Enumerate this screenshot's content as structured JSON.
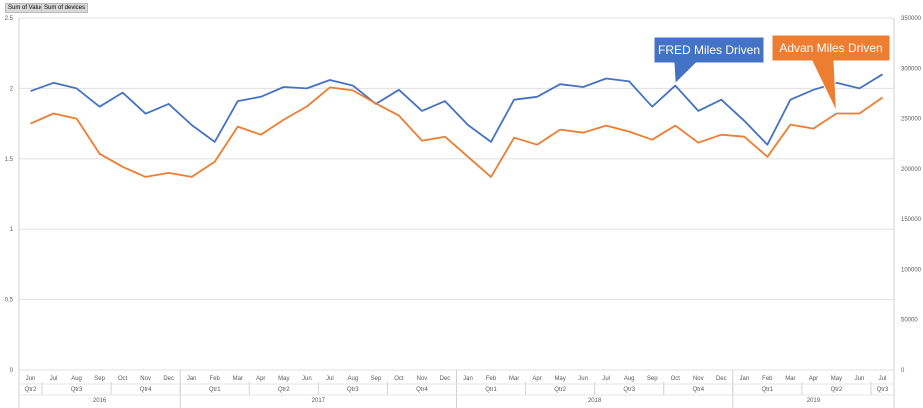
{
  "field_buttons": [
    "Sum of Value",
    "Sum of devices"
  ],
  "colors": {
    "fred": "#4472c4",
    "advan": "#ed7d31",
    "grid": "#e0e0e0",
    "axis_text": "#595959"
  },
  "chart_data": {
    "type": "line",
    "title": "",
    "y_left": {
      "min": 0,
      "max": 2.5,
      "ticks": [
        "0",
        "0.5",
        "1",
        "1.5",
        "2",
        "2.5"
      ]
    },
    "y_right": {
      "min": 0,
      "max": 350000,
      "ticks": [
        "0",
        "50000",
        "100000",
        "150000",
        "200000",
        "250000",
        "300000",
        "350000"
      ]
    },
    "x": [
      "Jun",
      "Jul",
      "Aug",
      "Sep",
      "Oct",
      "Nov",
      "Dec",
      "Jan",
      "Feb",
      "Mar",
      "Apr",
      "May",
      "Jun",
      "Jul",
      "Aug",
      "Sep",
      "Oct",
      "Nov",
      "Dec",
      "Jan",
      "Feb",
      "Mar",
      "Apr",
      "May",
      "Jun",
      "Jul",
      "Aug",
      "Sep",
      "Oct",
      "Nov",
      "Dec",
      "Jan",
      "Feb",
      "Mar",
      "Apr",
      "May",
      "Jun",
      "Jul"
    ],
    "quarters": [
      {
        "label": "Qtr2",
        "start": 0,
        "end": 0
      },
      {
        "label": "Qtr3",
        "start": 1,
        "end": 3
      },
      {
        "label": "Qtr4",
        "start": 4,
        "end": 6
      },
      {
        "label": "Qtr1",
        "start": 7,
        "end": 9
      },
      {
        "label": "Qtr2",
        "start": 10,
        "end": 12
      },
      {
        "label": "Qtr3",
        "start": 13,
        "end": 15
      },
      {
        "label": "Qtr4",
        "start": 16,
        "end": 18
      },
      {
        "label": "Qtr1",
        "start": 19,
        "end": 21
      },
      {
        "label": "Qtr2",
        "start": 22,
        "end": 24
      },
      {
        "label": "Qtr3",
        "start": 25,
        "end": 27
      },
      {
        "label": "Qtr4",
        "start": 28,
        "end": 30
      },
      {
        "label": "Qtr1",
        "start": 31,
        "end": 33
      },
      {
        "label": "Qtr2",
        "start": 34,
        "end": 36
      },
      {
        "label": "Qtr3",
        "start": 37,
        "end": 37
      }
    ],
    "years": [
      {
        "label": "2016",
        "start": 0,
        "end": 6
      },
      {
        "label": "2017",
        "start": 7,
        "end": 18
      },
      {
        "label": "2018",
        "start": 19,
        "end": 30
      },
      {
        "label": "2019",
        "start": 31,
        "end": 37
      }
    ],
    "series": [
      {
        "name": "FRED Miles Driven",
        "axis": "left",
        "color": "#4472c4",
        "values": [
          1.98,
          2.04,
          2.0,
          1.87,
          1.97,
          1.82,
          1.89,
          1.74,
          1.62,
          1.91,
          1.94,
          2.01,
          2.0,
          2.06,
          2.02,
          1.89,
          1.99,
          1.84,
          1.91,
          1.74,
          1.62,
          1.92,
          1.94,
          2.03,
          2.01,
          2.07,
          2.05,
          1.87,
          2.02,
          1.84,
          1.92,
          1.77,
          1.6,
          1.92,
          1.99,
          2.04,
          2.0,
          2.1
        ]
      },
      {
        "name": "Advan Miles Driven",
        "axis": "right",
        "color": "#ed7d31",
        "values": [
          245000,
          255000,
          250000,
          215000,
          202000,
          192000,
          196000,
          192000,
          207000,
          242000,
          234000,
          249000,
          262000,
          281000,
          278000,
          265000,
          253000,
          228000,
          232000,
          212000,
          192000,
          231000,
          224000,
          239000,
          236000,
          243000,
          237000,
          229000,
          243000,
          226000,
          234000,
          232000,
          212000,
          244000,
          240000,
          255000,
          255000,
          271000
        ]
      }
    ],
    "callouts": [
      {
        "text": "FRED Miles Driven",
        "series": 0,
        "index": 28,
        "color": "#4472c4"
      },
      {
        "text": "Advan Miles Driven",
        "series": 1,
        "index": 35,
        "color": "#ed7d31"
      }
    ],
    "grid": true,
    "legend": "none"
  }
}
